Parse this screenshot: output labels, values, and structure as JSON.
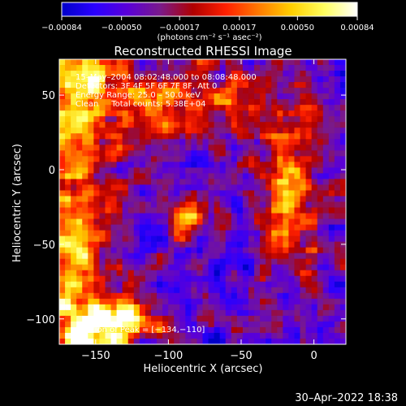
{
  "chart_data": {
    "type": "heatmap",
    "title": "Reconstructed RHESSI Image",
    "xlabel": "Heliocentric X (arcsec)",
    "ylabel": "Heliocentric Y (arcsec)",
    "xlim": [
      -175,
      22
    ],
    "ylim": [
      -117,
      74
    ],
    "x_ticks": [
      -150,
      -100,
      -50,
      0
    ],
    "x_tick_labels": [
      "−150",
      "−100",
      "−50",
      "0"
    ],
    "y_ticks": [
      -100,
      -50,
      0,
      50
    ],
    "y_tick_labels": [
      "−100",
      "−50",
      "0",
      "50"
    ],
    "colorbar": {
      "min": -0.00084,
      "max": 0.00084,
      "ticks": [
        -0.00084,
        -0.0005,
        -0.00017,
        0.00017,
        0.0005,
        0.00084
      ],
      "tick_labels": [
        "−0.00084",
        "−0.00050",
        "−0.00017",
        "0.00017",
        "0.00050",
        "0.00084"
      ],
      "units_label": "(photons cm⁻² s⁻¹ asec⁻²)",
      "colors": [
        "#0000c8",
        "#2a00ff",
        "#5a00d8",
        "#7a1a8a",
        "#b00000",
        "#ff2000",
        "#ff7a00",
        "#ffd000",
        "#ffff60",
        "#ffffff"
      ]
    },
    "annotations": [
      "15–May–2004 08:02:48.000 to 08:08:48.000",
      "Detectors: 3F 4F 5F 6F 7F 8F, Att 0",
      "Energy Range: 25.0 – 50.0 keV",
      "Clean     Total counts: 5.38E+04"
    ],
    "peak_label": "Position of Peak = [−134,−110]",
    "peak_position": [
      -134,
      -110
    ]
  },
  "timestamp": "30–Apr–2022 18:38"
}
